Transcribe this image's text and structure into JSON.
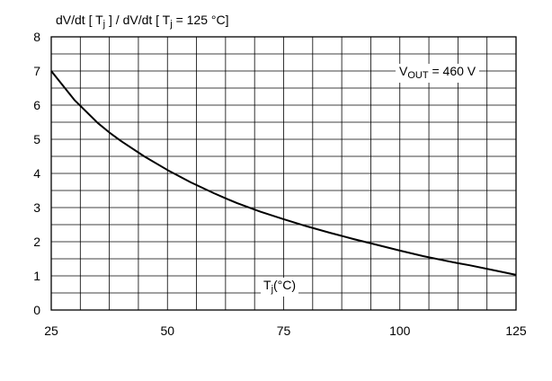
{
  "chart_data": {
    "type": "line",
    "title_parts": {
      "t1": "dV/dt [ T",
      "t1_sub": "j",
      "t2": " ] / dV/dt [ T",
      "t2_sub": "j",
      "t3": " = 125 °C]"
    },
    "xlabel_parts": {
      "main": "T",
      "sub": "j",
      "rest": "(°C)"
    },
    "annotation_parts": {
      "main": "V",
      "sub": "OUT",
      "rest": " = 460 V"
    },
    "x_ticks": [
      "25",
      "50",
      "75",
      "100",
      "125"
    ],
    "y_ticks": [
      "0",
      "1",
      "2",
      "3",
      "4",
      "5",
      "6",
      "7",
      "8"
    ],
    "xlim": [
      25,
      125
    ],
    "ylim": [
      0,
      8
    ],
    "grid": true,
    "grid_x_step": 6.25,
    "grid_y_step": 0.5,
    "series": [
      {
        "x": [
          25,
          30,
          35,
          37.5,
          40,
          45,
          50,
          55,
          60,
          62.5,
          65,
          70,
          75,
          80,
          85,
          87.5,
          90,
          95,
          100,
          105,
          110,
          112.5,
          115,
          120,
          125
        ],
        "y": [
          7.0,
          6.15,
          5.48,
          5.2,
          4.95,
          4.5,
          4.1,
          3.74,
          3.42,
          3.27,
          3.13,
          2.88,
          2.66,
          2.45,
          2.26,
          2.17,
          2.08,
          1.91,
          1.74,
          1.58,
          1.44,
          1.37,
          1.31,
          1.17,
          1.03
        ]
      }
    ],
    "colors": {
      "grid": "#000000",
      "line": "#000000",
      "background": "#ffffff"
    }
  }
}
